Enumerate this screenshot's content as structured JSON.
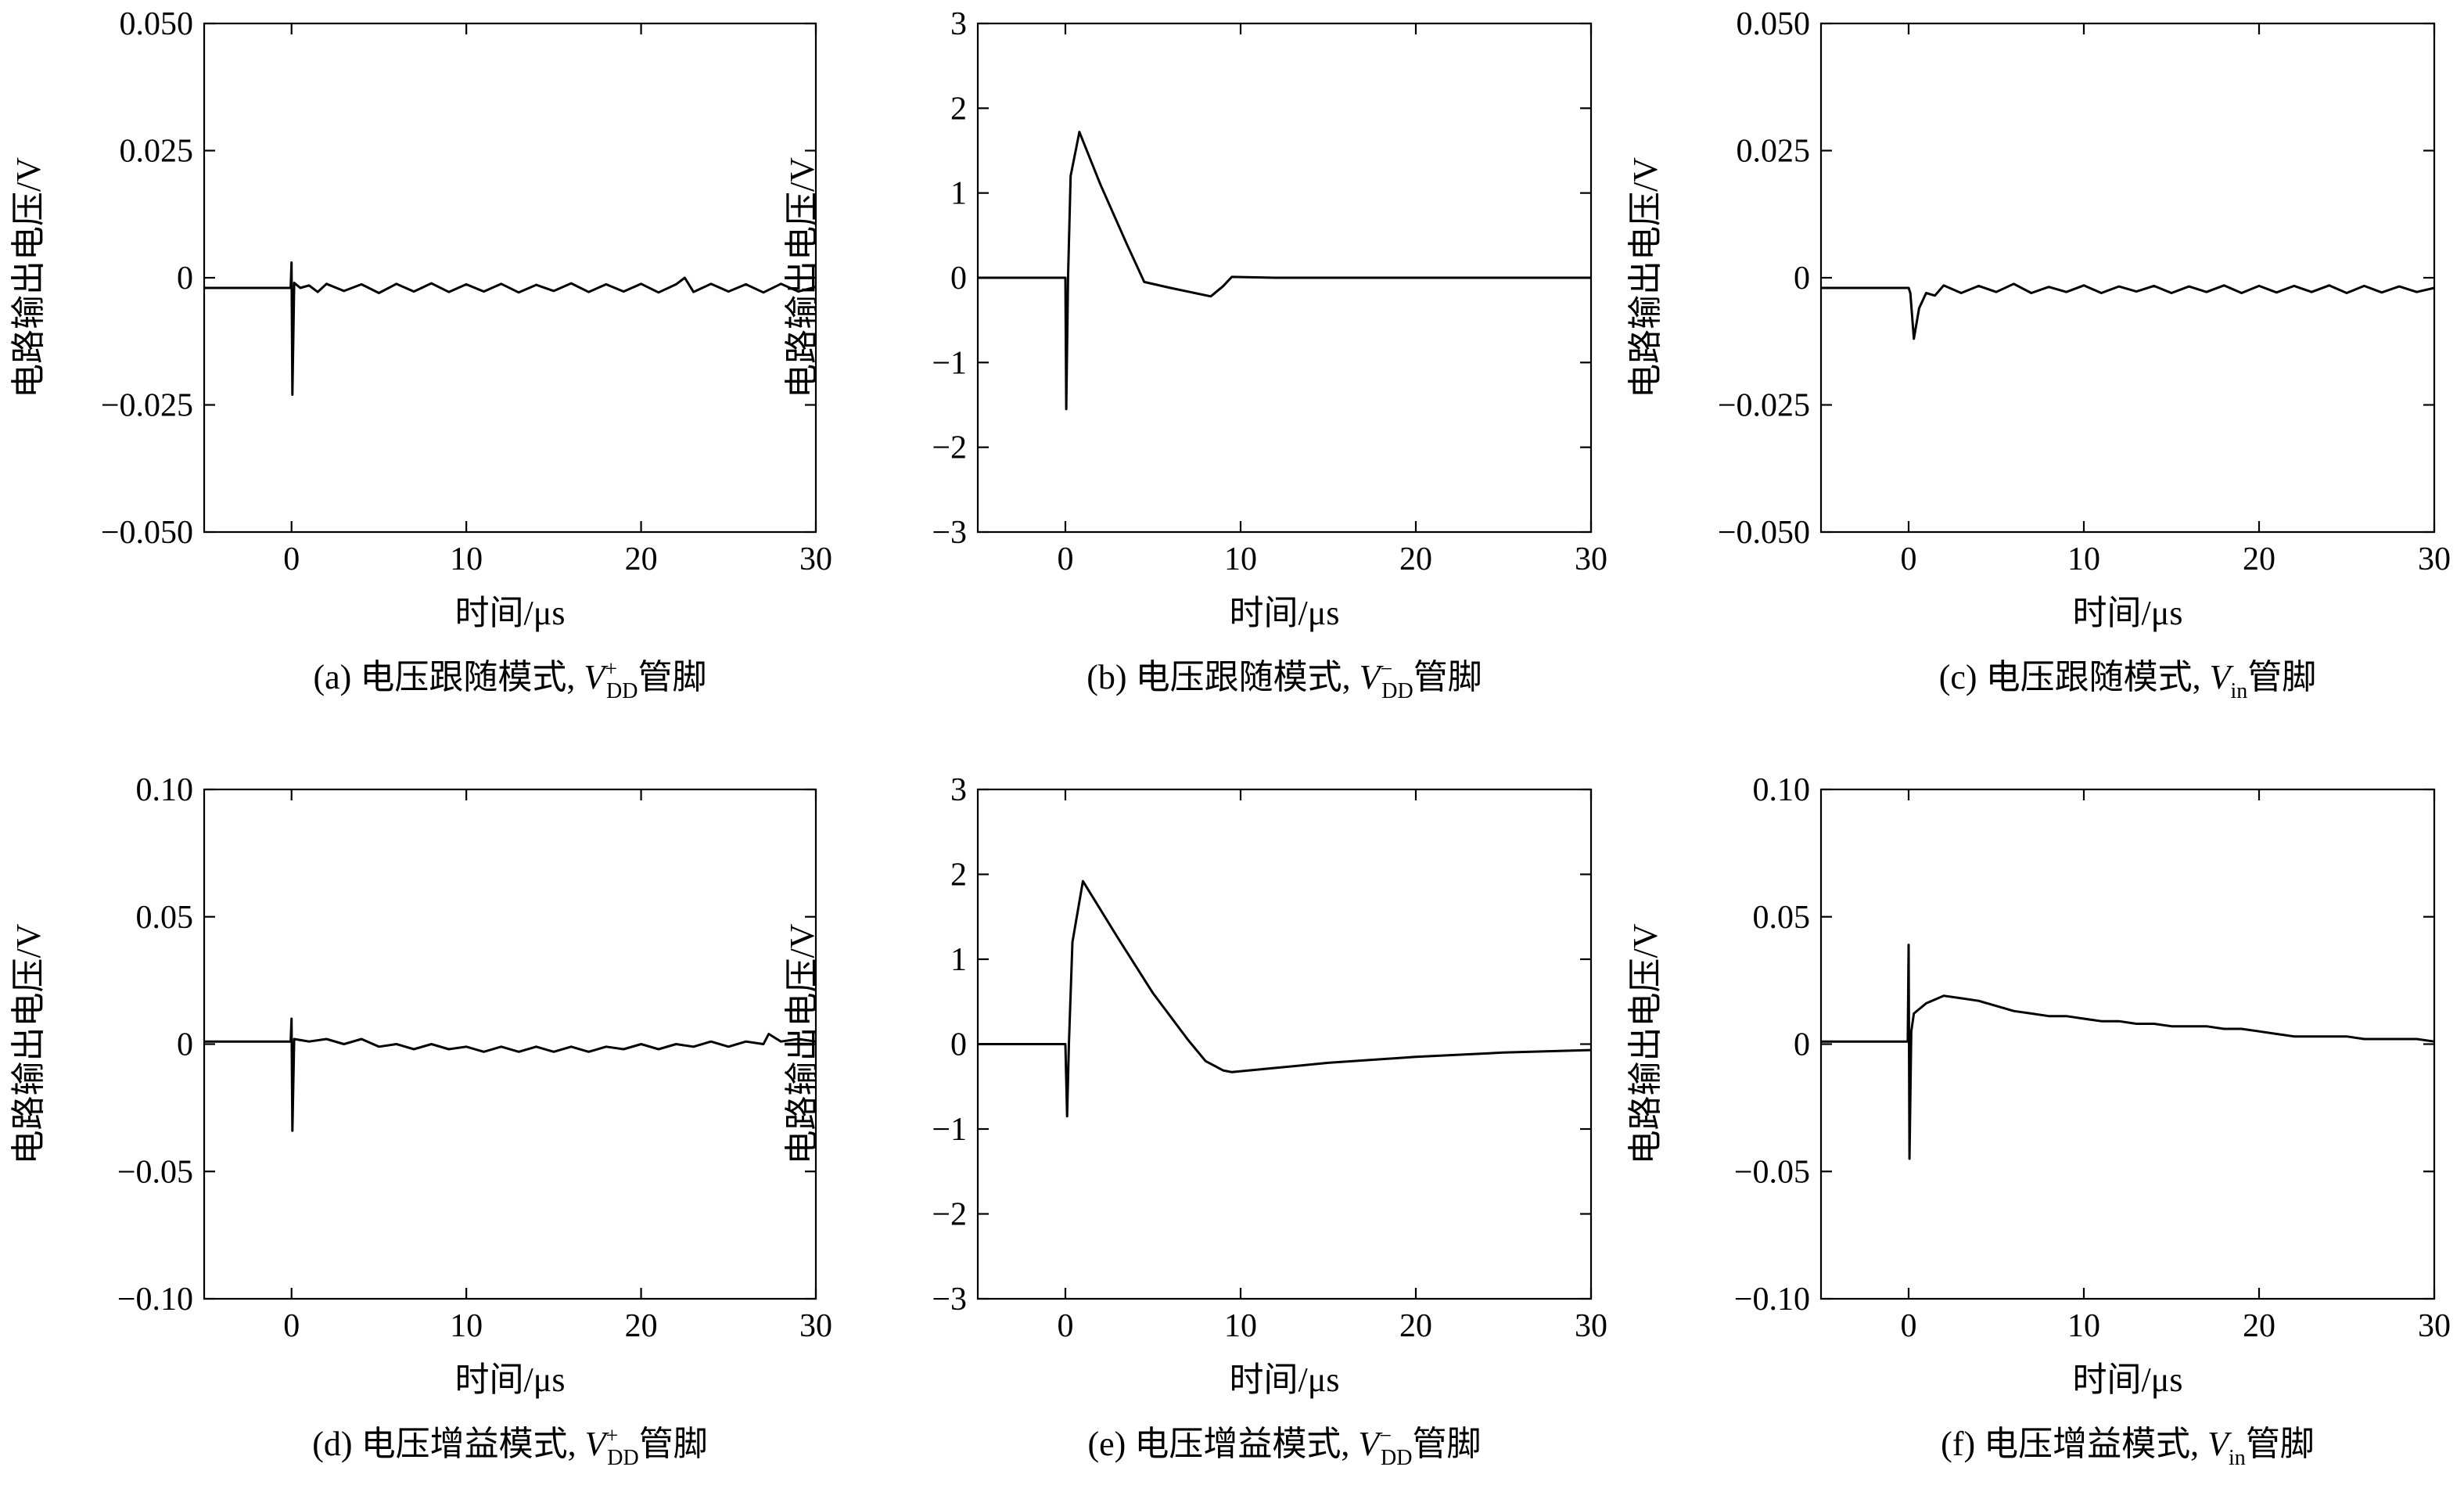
{
  "chart_data": [
    {
      "id": "a",
      "type": "line",
      "xlabel": "时间/μs",
      "ylabel": "电路输出电压/V",
      "xlim": [
        -5,
        30
      ],
      "ylim": [
        -0.05,
        0.05
      ],
      "xticks": [
        0,
        10,
        20,
        30
      ],
      "xtick_labels": [
        "0",
        "10",
        "20",
        "30"
      ],
      "yticks": [
        -0.05,
        -0.025,
        0,
        0.025,
        0.05
      ],
      "ytick_labels": [
        "−0.050",
        "−0.025",
        "0",
        "0.025",
        "0.050"
      ],
      "caption": {
        "prefix": "(a) 电压跟随模式, ",
        "var": "V",
        "sup": "+",
        "sub": "DD",
        "suffix": "管脚"
      },
      "points": [
        [
          -5,
          -0.002
        ],
        [
          -0.05,
          -0.002
        ],
        [
          0,
          0.003
        ],
        [
          0.05,
          -0.023
        ],
        [
          0.15,
          -0.001
        ],
        [
          0.5,
          -0.002
        ],
        [
          1,
          -0.0015
        ],
        [
          1.5,
          -0.0028
        ],
        [
          2,
          -0.0012
        ],
        [
          3,
          -0.0026
        ],
        [
          4,
          -0.0013
        ],
        [
          5,
          -0.003
        ],
        [
          6,
          -0.0012
        ],
        [
          7,
          -0.0027
        ],
        [
          8,
          -0.0011
        ],
        [
          9,
          -0.0028
        ],
        [
          10,
          -0.0013
        ],
        [
          11,
          -0.0027
        ],
        [
          12,
          -0.0012
        ],
        [
          13,
          -0.0029
        ],
        [
          14,
          -0.0014
        ],
        [
          15,
          -0.0026
        ],
        [
          16,
          -0.0011
        ],
        [
          17,
          -0.0028
        ],
        [
          18,
          -0.0013
        ],
        [
          19,
          -0.0027
        ],
        [
          20,
          -0.0012
        ],
        [
          21,
          -0.0029
        ],
        [
          22,
          -0.0013
        ],
        [
          22.5,
          0.0
        ],
        [
          23,
          -0.0028
        ],
        [
          24,
          -0.0012
        ],
        [
          25,
          -0.0027
        ],
        [
          26,
          -0.0013
        ],
        [
          27,
          -0.0029
        ],
        [
          28,
          -0.0012
        ],
        [
          29,
          -0.0027
        ],
        [
          30,
          -0.0018
        ]
      ]
    },
    {
      "id": "b",
      "type": "line",
      "xlabel": "时间/μs",
      "ylabel": "电路输出电压/V",
      "xlim": [
        -5,
        30
      ],
      "ylim": [
        -3,
        3
      ],
      "xticks": [
        0,
        10,
        20,
        30
      ],
      "xtick_labels": [
        "0",
        "10",
        "20",
        "30"
      ],
      "yticks": [
        -3,
        -2,
        -1,
        0,
        1,
        2,
        3
      ],
      "ytick_labels": [
        "−3",
        "−2",
        "−1",
        "0",
        "1",
        "2",
        "3"
      ],
      "caption": {
        "prefix": "(b) 电压跟随模式, ",
        "var": "V",
        "sup": "−",
        "sub": "DD",
        "suffix": "管脚"
      },
      "points": [
        [
          -5,
          0
        ],
        [
          0,
          0
        ],
        [
          0.05,
          -1.55
        ],
        [
          0.15,
          0
        ],
        [
          0.3,
          1.2
        ],
        [
          0.8,
          1.72
        ],
        [
          2,
          1.1
        ],
        [
          3.5,
          0.4
        ],
        [
          4.5,
          -0.05
        ],
        [
          6,
          -0.12
        ],
        [
          8.3,
          -0.22
        ],
        [
          9,
          -0.1
        ],
        [
          9.5,
          0.01
        ],
        [
          12,
          0
        ],
        [
          30,
          0
        ]
      ]
    },
    {
      "id": "c",
      "type": "line",
      "xlabel": "时间/μs",
      "ylabel": "电路输出电压/V",
      "xlim": [
        -5,
        30
      ],
      "ylim": [
        -0.05,
        0.05
      ],
      "xticks": [
        0,
        10,
        20,
        30
      ],
      "xtick_labels": [
        "0",
        "10",
        "20",
        "30"
      ],
      "yticks": [
        -0.05,
        -0.025,
        0,
        0.025,
        0.05
      ],
      "ytick_labels": [
        "−0.050",
        "−0.025",
        "0",
        "0.025",
        "0.050"
      ],
      "caption": {
        "prefix": "(c) 电压跟随模式, ",
        "var": "V",
        "sup": "",
        "sub": "in",
        "suffix": "管脚"
      },
      "points": [
        [
          -5,
          -0.002
        ],
        [
          0,
          -0.002
        ],
        [
          0.1,
          -0.003
        ],
        [
          0.3,
          -0.012
        ],
        [
          0.6,
          -0.006
        ],
        [
          1,
          -0.003
        ],
        [
          1.5,
          -0.0035
        ],
        [
          2,
          -0.0015
        ],
        [
          3,
          -0.003
        ],
        [
          4,
          -0.0016
        ],
        [
          5,
          -0.0028
        ],
        [
          6,
          -0.0012
        ],
        [
          7,
          -0.003
        ],
        [
          8,
          -0.0018
        ],
        [
          9,
          -0.0028
        ],
        [
          10,
          -0.0015
        ],
        [
          11,
          -0.003
        ],
        [
          12,
          -0.0017
        ],
        [
          13,
          -0.0027
        ],
        [
          14,
          -0.0016
        ],
        [
          15,
          -0.003
        ],
        [
          16,
          -0.0017
        ],
        [
          17,
          -0.0028
        ],
        [
          18,
          -0.0015
        ],
        [
          19,
          -0.003
        ],
        [
          20,
          -0.0016
        ],
        [
          21,
          -0.0029
        ],
        [
          22,
          -0.0016
        ],
        [
          23,
          -0.0028
        ],
        [
          24,
          -0.0015
        ],
        [
          25,
          -0.003
        ],
        [
          26,
          -0.0016
        ],
        [
          27,
          -0.0029
        ],
        [
          28,
          -0.0017
        ],
        [
          29,
          -0.0028
        ],
        [
          30,
          -0.002
        ]
      ]
    },
    {
      "id": "d",
      "type": "line",
      "xlabel": "时间/μs",
      "ylabel": "电路输出电压/V",
      "xlim": [
        -5,
        30
      ],
      "ylim": [
        -0.1,
        0.1
      ],
      "xticks": [
        0,
        10,
        20,
        30
      ],
      "xtick_labels": [
        "0",
        "10",
        "20",
        "30"
      ],
      "yticks": [
        -0.1,
        -0.05,
        0,
        0.05,
        0.1
      ],
      "ytick_labels": [
        "−0.10",
        "−0.05",
        "0",
        "0.05",
        "0.10"
      ],
      "caption": {
        "prefix": "(d) 电压增益模式, ",
        "var": "V",
        "sup": "+",
        "sub": "DD",
        "suffix": "管脚"
      },
      "points": [
        [
          -5,
          0.001
        ],
        [
          -0.05,
          0.001
        ],
        [
          0,
          0.01
        ],
        [
          0.05,
          -0.034
        ],
        [
          0.15,
          0.002
        ],
        [
          1,
          0.001
        ],
        [
          2,
          0.002
        ],
        [
          3,
          0.0
        ],
        [
          4,
          0.002
        ],
        [
          5,
          -0.001
        ],
        [
          6,
          0.0
        ],
        [
          7,
          -0.002
        ],
        [
          8,
          0.0
        ],
        [
          9,
          -0.002
        ],
        [
          10,
          -0.001
        ],
        [
          11,
          -0.003
        ],
        [
          12,
          -0.001
        ],
        [
          13,
          -0.003
        ],
        [
          14,
          -0.001
        ],
        [
          15,
          -0.003
        ],
        [
          16,
          -0.001
        ],
        [
          17,
          -0.003
        ],
        [
          18,
          -0.001
        ],
        [
          19,
          -0.002
        ],
        [
          20,
          0.0
        ],
        [
          21,
          -0.002
        ],
        [
          22,
          0.0
        ],
        [
          23,
          -0.001
        ],
        [
          24,
          0.001
        ],
        [
          25,
          -0.001
        ],
        [
          26,
          0.001
        ],
        [
          27,
          0.0
        ],
        [
          27.3,
          0.004
        ],
        [
          28,
          0.001
        ],
        [
          29,
          0.002
        ],
        [
          30,
          0.001
        ]
      ]
    },
    {
      "id": "e",
      "type": "line",
      "xlabel": "时间/μs",
      "ylabel": "电路输出电压/V",
      "xlim": [
        -5,
        30
      ],
      "ylim": [
        -3,
        3
      ],
      "xticks": [
        0,
        10,
        20,
        30
      ],
      "xtick_labels": [
        "0",
        "10",
        "20",
        "30"
      ],
      "yticks": [
        -3,
        -2,
        -1,
        0,
        1,
        2,
        3
      ],
      "ytick_labels": [
        "−3",
        "−2",
        "−1",
        "0",
        "1",
        "2",
        "3"
      ],
      "caption": {
        "prefix": "(e) 电压增益模式, ",
        "var": "V",
        "sup": "−",
        "sub": "DD",
        "suffix": "管脚"
      },
      "points": [
        [
          -5,
          0
        ],
        [
          0,
          0
        ],
        [
          0.1,
          -0.85
        ],
        [
          0.2,
          0
        ],
        [
          0.4,
          1.2
        ],
        [
          1,
          1.92
        ],
        [
          3,
          1.25
        ],
        [
          5,
          0.6
        ],
        [
          7,
          0.05
        ],
        [
          8,
          -0.2
        ],
        [
          9,
          -0.31
        ],
        [
          9.5,
          -0.33
        ],
        [
          12,
          -0.28
        ],
        [
          15,
          -0.22
        ],
        [
          20,
          -0.15
        ],
        [
          25,
          -0.1
        ],
        [
          30,
          -0.07
        ]
      ]
    },
    {
      "id": "f",
      "type": "line",
      "xlabel": "时间/μs",
      "ylabel": "电路输出电压/V",
      "xlim": [
        -5,
        30
      ],
      "ylim": [
        -0.1,
        0.1
      ],
      "xticks": [
        0,
        10,
        20,
        30
      ],
      "xtick_labels": [
        "0",
        "10",
        "20",
        "30"
      ],
      "yticks": [
        -0.1,
        -0.05,
        0,
        0.05,
        0.1
      ],
      "ytick_labels": [
        "−0.10",
        "−0.05",
        "0",
        "0.05",
        "0.10"
      ],
      "caption": {
        "prefix": "(f) 电压增益模式, ",
        "var": "V",
        "sup": "",
        "sub": "in",
        "suffix": "管脚"
      },
      "points": [
        [
          -5,
          0.001
        ],
        [
          -0.05,
          0.001
        ],
        [
          0,
          0.039
        ],
        [
          0.05,
          -0.045
        ],
        [
          0.15,
          0.005
        ],
        [
          0.3,
          0.012
        ],
        [
          1,
          0.016
        ],
        [
          2,
          0.019
        ],
        [
          3,
          0.018
        ],
        [
          4,
          0.017
        ],
        [
          5,
          0.015
        ],
        [
          6,
          0.013
        ],
        [
          7,
          0.012
        ],
        [
          8,
          0.011
        ],
        [
          9,
          0.011
        ],
        [
          10,
          0.01
        ],
        [
          11,
          0.009
        ],
        [
          12,
          0.009
        ],
        [
          13,
          0.008
        ],
        [
          14,
          0.008
        ],
        [
          15,
          0.007
        ],
        [
          16,
          0.007
        ],
        [
          17,
          0.007
        ],
        [
          18,
          0.006
        ],
        [
          19,
          0.006
        ],
        [
          20,
          0.005
        ],
        [
          21,
          0.004
        ],
        [
          22,
          0.003
        ],
        [
          23,
          0.003
        ],
        [
          24,
          0.003
        ],
        [
          25,
          0.003
        ],
        [
          26,
          0.002
        ],
        [
          27,
          0.002
        ],
        [
          28,
          0.002
        ],
        [
          29,
          0.002
        ],
        [
          30,
          0.001
        ]
      ]
    }
  ]
}
